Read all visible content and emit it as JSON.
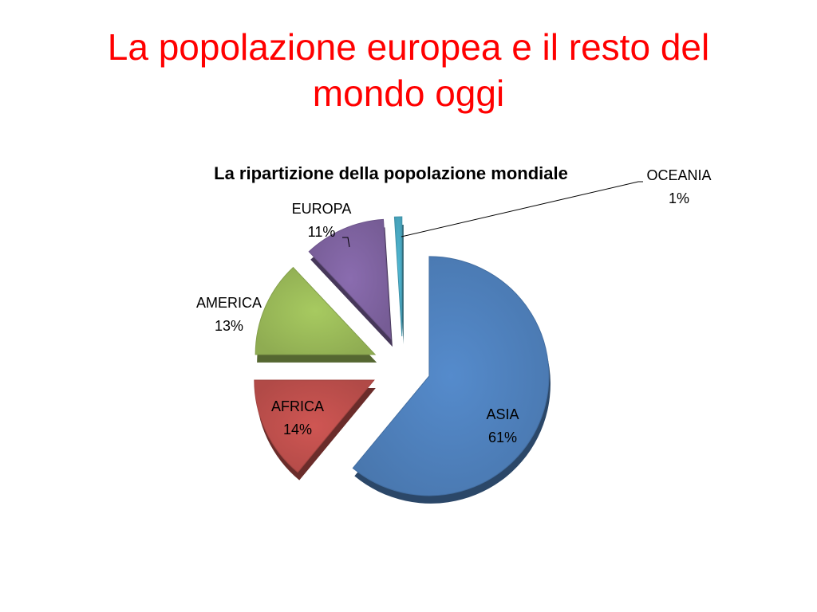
{
  "slide": {
    "title": "La popolazione europea e il resto del mondo oggi"
  },
  "chart_data": {
    "type": "pie",
    "title": "La ripartizione della popolazione mondiale",
    "exploded": true,
    "three_d": true,
    "slices": [
      {
        "label": "ASIA",
        "value": 61,
        "value_label": "61%",
        "color": "#4f81bd"
      },
      {
        "label": "AFRICA",
        "value": 14,
        "value_label": "14%",
        "color": "#c0504d"
      },
      {
        "label": "AMERICA",
        "value": 13,
        "value_label": "13%",
        "color": "#9bbb59"
      },
      {
        "label": "EUROPA",
        "value": 11,
        "value_label": "11%",
        "color": "#8064a2"
      },
      {
        "label": "OCEANIA",
        "value": 1,
        "value_label": "1%",
        "color": "#4bacc6"
      }
    ]
  }
}
